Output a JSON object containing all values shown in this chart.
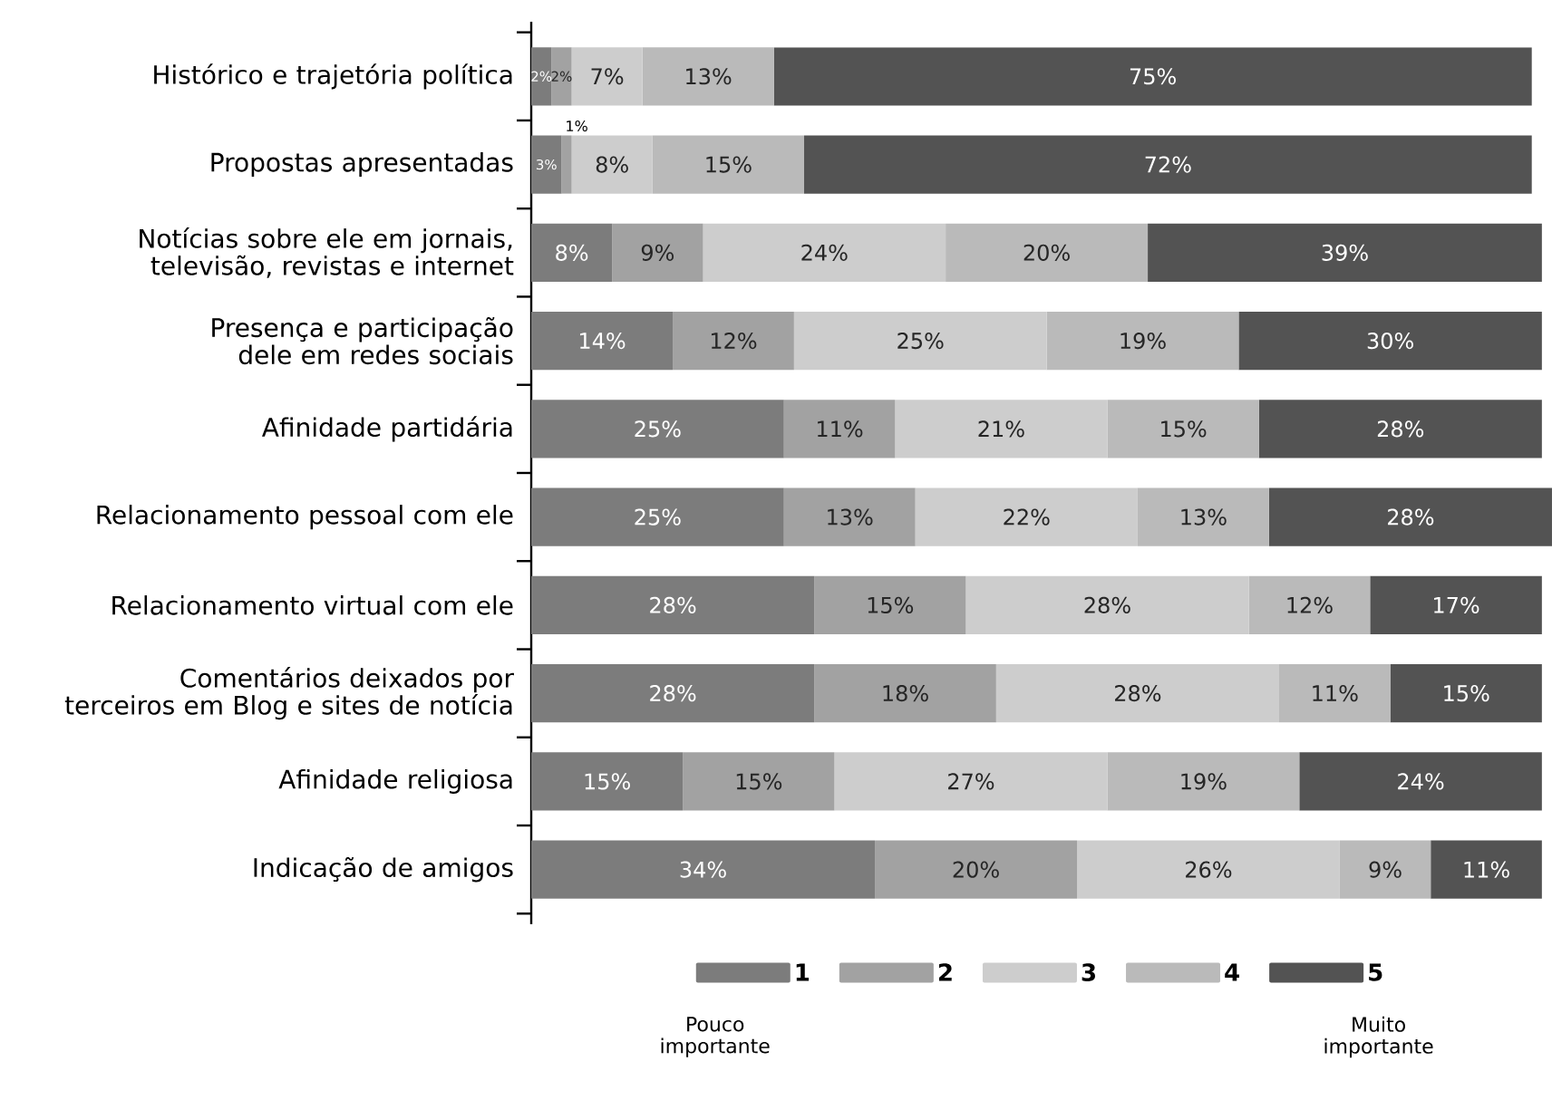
{
  "chart_data": {
    "type": "bar",
    "orientation": "horizontal",
    "stacked": true,
    "categories": [
      "Histórico e trajetória política",
      "Propostas apresentadas",
      "Notícias sobre ele em jornais, televisão, revistas e internet",
      "Presença e participação dele em redes sociais",
      "Afinidade partidária",
      "Relacionamento pessoal com ele",
      "Relacionamento virtual com ele",
      "Comentários deixados por terceiros em Blog e sites de notícia",
      "Afinidade religiosa",
      "Indicação de amigos"
    ],
    "series": [
      {
        "name": "1",
        "color": "#7c7c7c",
        "values": [
          2,
          3,
          8,
          14,
          25,
          25,
          28,
          28,
          15,
          34
        ],
        "value_labels": [
          "2%",
          "3%",
          "8%",
          "14%",
          "25%",
          "25%",
          "28%",
          "28%",
          "15%",
          "34%"
        ]
      },
      {
        "name": "2",
        "color": "#a2a2a2",
        "values": [
          2,
          1,
          9,
          12,
          11,
          13,
          15,
          18,
          15,
          20
        ],
        "value_labels": [
          "2%",
          "1%",
          "9%",
          "12%",
          "11%",
          "13%",
          "15%",
          "18%",
          "15%",
          "20%"
        ]
      },
      {
        "name": "3",
        "color": "#cdcdcd",
        "values": [
          7,
          8,
          24,
          25,
          21,
          22,
          28,
          28,
          27,
          26
        ],
        "value_labels": [
          "7%",
          "8%",
          "24%",
          "25%",
          "21%",
          "22%",
          "28%",
          "28%",
          "27%",
          "26%"
        ]
      },
      {
        "name": "4",
        "color": "#bababa",
        "values": [
          13,
          15,
          20,
          19,
          15,
          13,
          12,
          11,
          19,
          9
        ],
        "value_labels": [
          "13%",
          "15%",
          "20%",
          "19%",
          "15%",
          "13%",
          "12%",
          "11%",
          "19%",
          "9%"
        ]
      },
      {
        "name": "5",
        "color": "#535353",
        "values": [
          75,
          72,
          39,
          30,
          28,
          28,
          17,
          15,
          24,
          11
        ],
        "value_labels": [
          "75%",
          "72%",
          "39%",
          "30%",
          "28%",
          "28%",
          "17%",
          "15%",
          "24%",
          "11%"
        ]
      }
    ],
    "xlim": [
      0,
      101
    ],
    "tick_labels": "y",
    "legend": "bottom",
    "annotations": [
      "Pouco importante",
      "Muito importante"
    ]
  }
}
